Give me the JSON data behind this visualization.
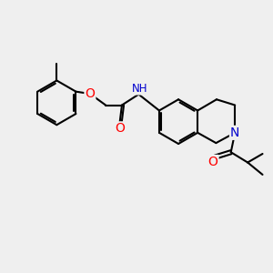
{
  "bg_color": "#efefef",
  "bond_color": "#000000",
  "atom_colors": {
    "O": "#ff0000",
    "N": "#0000cd",
    "H": "#4a9090",
    "C": "#000000"
  },
  "font_size_atom": 9,
  "line_width": 1.5,
  "fig_size": [
    3.0,
    3.0
  ],
  "dpi": 100
}
